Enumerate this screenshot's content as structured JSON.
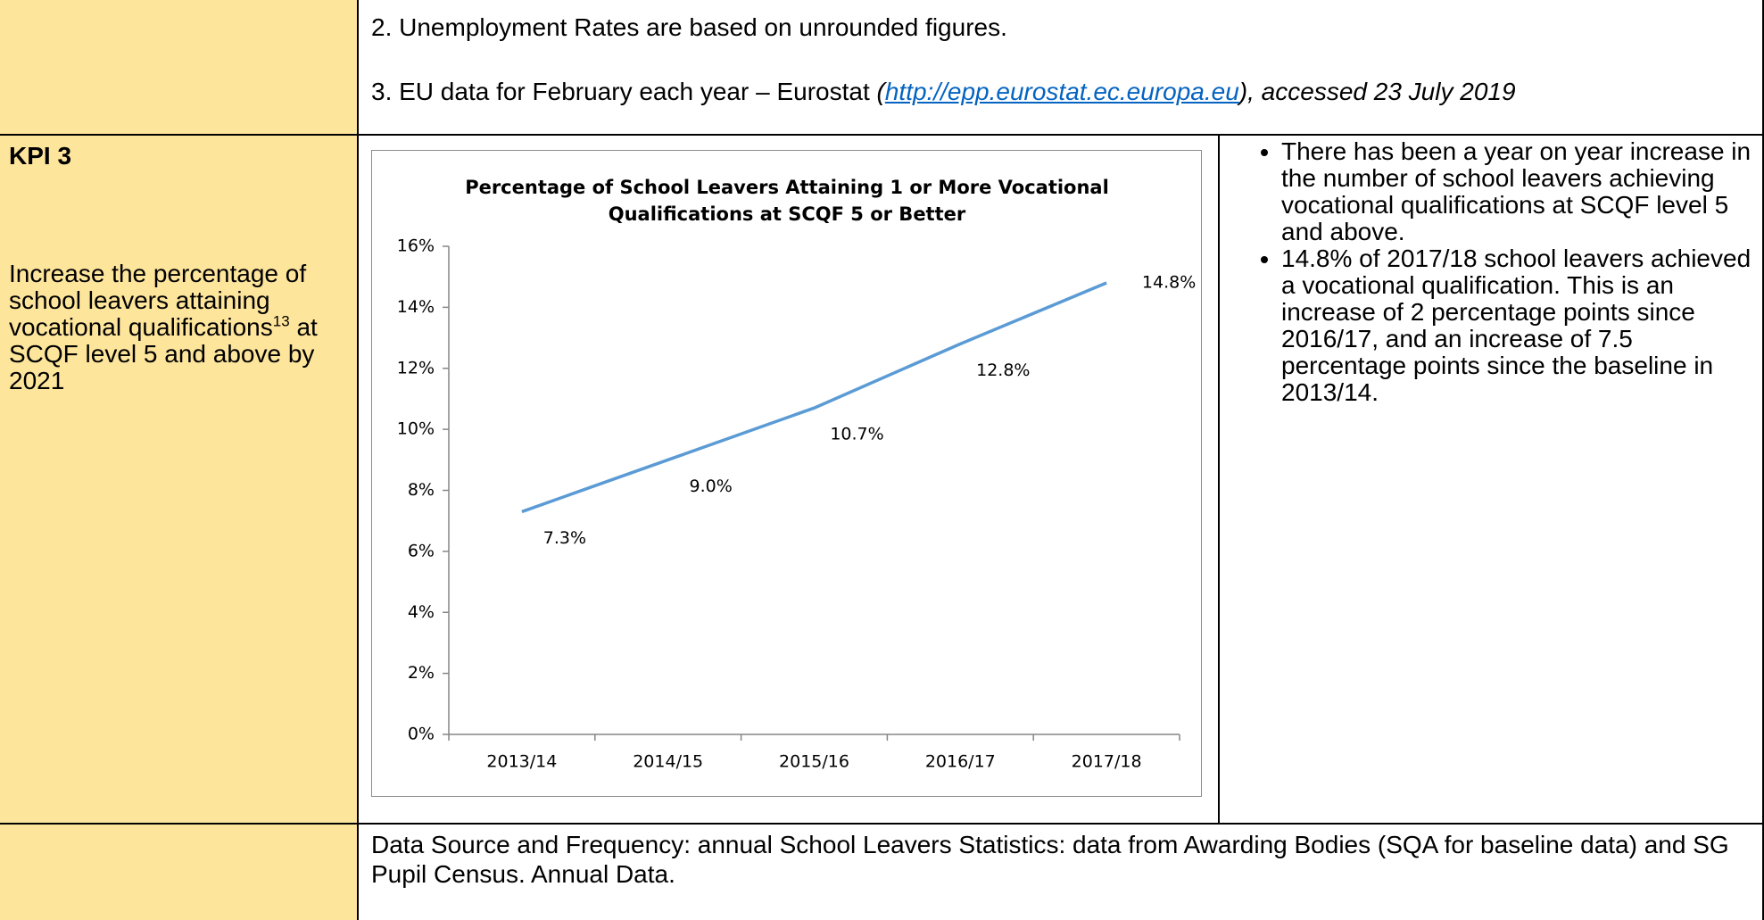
{
  "notes": [
    "2. Unemployment Rates are based on unrounded figures.",
    {
      "text": "3. EU data for February each year – Eurostat",
      "open": "(",
      "link": "http://epp.eurostat.ec.europa.eu",
      "close": "), accessed 23 July 2019"
    }
  ],
  "kpi": {
    "label": "KPI 3",
    "description": "Increase the percentage of school leavers attaining vocational qualifications",
    "footnote_ref": "13",
    "description_end": "at SCQF level 5 and above by 2021"
  },
  "chart_data": {
    "type": "line",
    "title": "Percentage of School Leavers Attaining 1 or More Vocational Qualifications at SCQF 5 or Better",
    "categories": [
      "2013/14",
      "2014/15",
      "2015/16",
      "2016/17",
      "2017/18"
    ],
    "series": [
      {
        "name": "Vocational qualifications",
        "color": "#5b9bd5",
        "values": [
          7.3,
          9.0,
          10.7,
          12.8,
          14.8
        ],
        "value_labels": [
          "7.3%",
          "9.0%",
          "10.7%",
          "12.8%",
          "14.8%"
        ]
      }
    ],
    "ylim": [
      0,
      16
    ],
    "yticks": [
      {
        "value": 0,
        "label": "0%"
      },
      {
        "value": 2,
        "label": "2%"
      },
      {
        "value": 4,
        "label": "4%"
      },
      {
        "value": 6,
        "label": "6%"
      },
      {
        "value": 8,
        "label": "8%"
      },
      {
        "value": 10,
        "label": "10%"
      },
      {
        "value": 12,
        "label": "12%"
      },
      {
        "value": 14,
        "label": "14%"
      },
      {
        "value": 16,
        "label": "16%"
      }
    ],
    "grid": false,
    "legend": false
  },
  "bullets": [
    "There has been a year on year increase in the number of school leavers achieving vocational qualifications at SCQF level 5 and above.",
    "14.8% of 2017/18 school leavers achieved a vocational qualification. This is an increase of 2 percentage points since 2016/17, and an increase of 7.5 percentage points since the baseline in 2013/14."
  ],
  "source": "Data Source and Frequency: annual School Leavers Statistics: data from Awarding Bodies (SQA for baseline data) and SG Pupil Census.  Annual Data."
}
